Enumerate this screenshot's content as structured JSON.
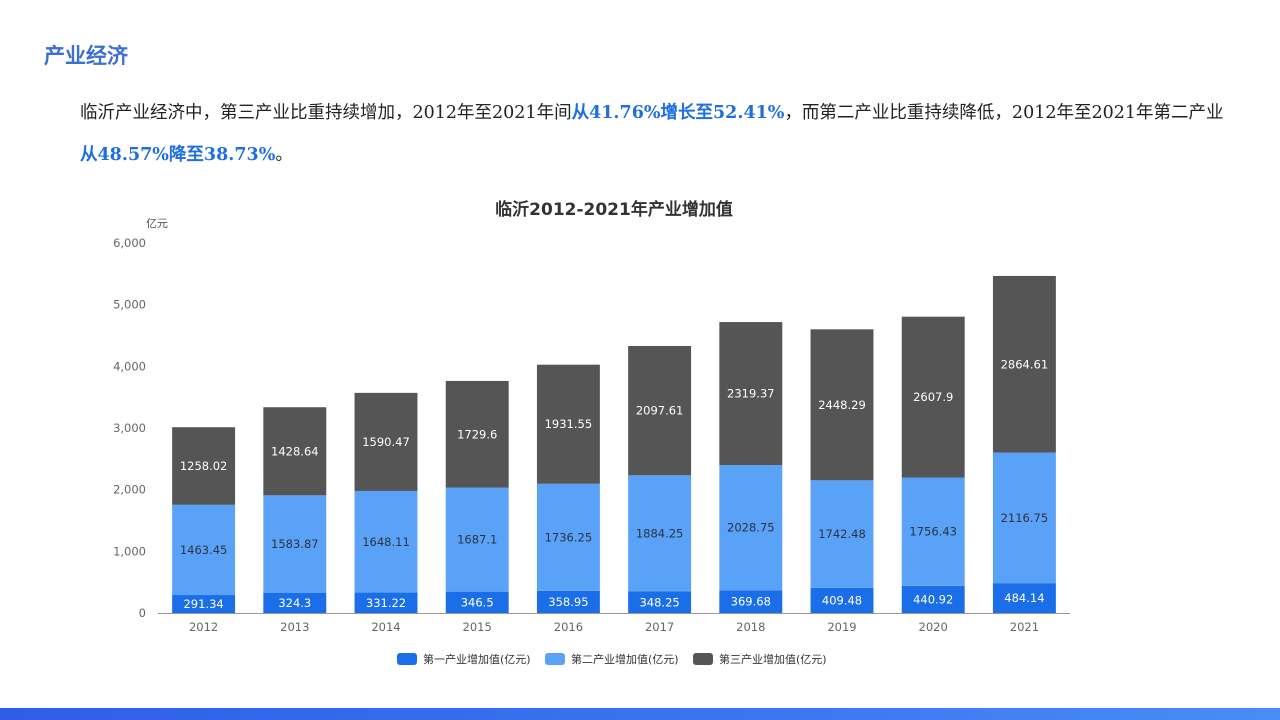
{
  "header": {
    "title": "产业经济"
  },
  "summary": {
    "part1": "临沂产业经济中，第三产业比重持续增加，2012年至2021年间",
    "hl1": "从41.76%增长至52.41%",
    "part2": "，而第二产业比重持续降低，2012年至2021年第二产业",
    "hl2": "从48.57%降至38.73%",
    "part3": "。"
  },
  "colors": {
    "accent": "#3b6fd0",
    "highlight": "#1f6fe0",
    "primary_industry": "#1a6fe8",
    "secondary_industry": "#5aa2f8",
    "tertiary_industry": "#555555"
  },
  "chart_data": {
    "type": "bar",
    "stacked": true,
    "title": "临沂2012-2021年产业增加值",
    "ylabel": "亿元",
    "xlabel": "",
    "ylim": [
      0,
      6000
    ],
    "yticks": [
      0,
      1000,
      2000,
      3000,
      4000,
      5000,
      6000
    ],
    "ytick_labels": [
      "0",
      "1,000",
      "2,000",
      "3,000",
      "4,000",
      "5,000",
      "6,000"
    ],
    "grid": false,
    "legend_position": "bottom",
    "categories": [
      "2012",
      "2013",
      "2014",
      "2015",
      "2016",
      "2017",
      "2018",
      "2019",
      "2020",
      "2021"
    ],
    "series": [
      {
        "name": "第一产业增加值(亿元)",
        "color": "#1a6fe8",
        "values": [
          291.34,
          324.3,
          331.22,
          346.5,
          358.95,
          348.25,
          369.68,
          409.48,
          440.92,
          484.14
        ],
        "labels": [
          "291.34",
          "324.3",
          "331.22",
          "346.5",
          "358.95",
          "348.25",
          "369.68",
          "409.48",
          "440.92",
          "484.14"
        ]
      },
      {
        "name": "第二产业增加值(亿元)",
        "color": "#5aa2f8",
        "values": [
          1463.45,
          1583.87,
          1648.11,
          1687.1,
          1736.25,
          1884.25,
          2028.75,
          1742.48,
          1756.43,
          2116.75
        ],
        "labels": [
          "1463.45",
          "1583.87",
          "1648.11",
          "1687.1",
          "1736.25",
          "1884.25",
          "2028.75",
          "1742.48",
          "1756.43",
          "2116.75"
        ]
      },
      {
        "name": "第三产业增加值(亿元)",
        "color": "#555555",
        "values": [
          1258.02,
          1428.64,
          1590.47,
          1729.6,
          1931.55,
          2097.61,
          2319.37,
          2448.29,
          2607.9,
          2864.61
        ],
        "labels": [
          "1258.02",
          "1428.64",
          "1590.47",
          "1729.6",
          "1931.55",
          "2097.61",
          "2319.37",
          "2448.29",
          "2607.9",
          "2864.61"
        ]
      }
    ]
  }
}
